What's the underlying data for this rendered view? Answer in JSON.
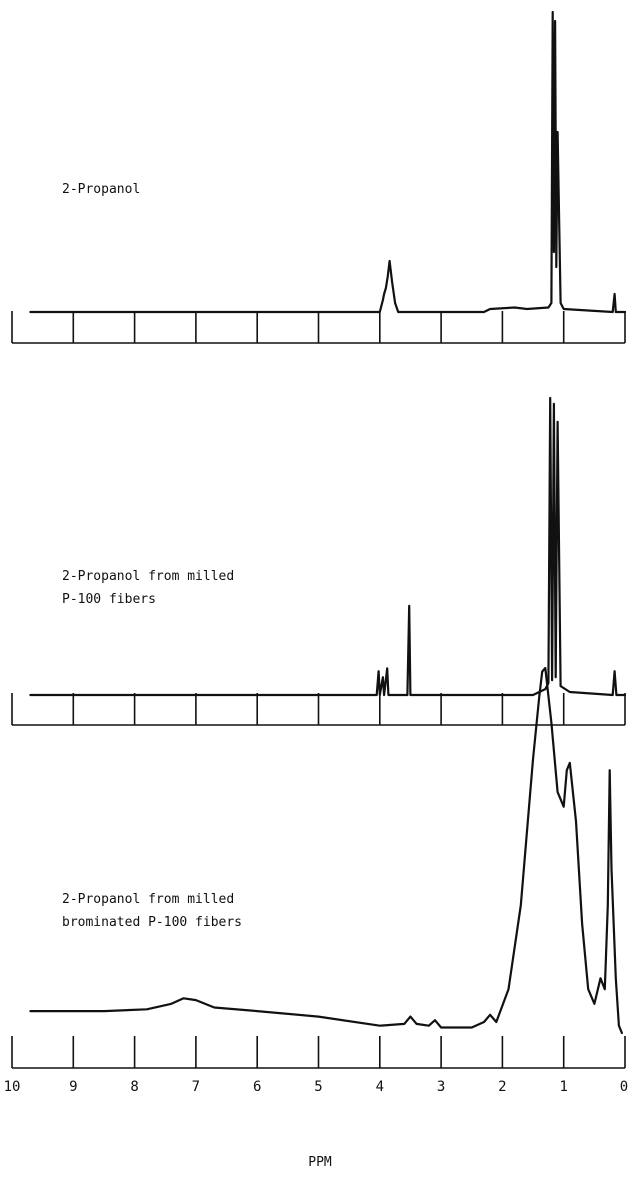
{
  "chart_data": [
    {
      "type": "line",
      "title": "2-Propanol",
      "title_lines": [
        "2-Propanol"
      ],
      "x_reversed": true,
      "xlim": [
        10,
        0
      ],
      "series": [
        {
          "points": [
            [
              9.7,
              0
            ],
            [
              4.0,
              0
            ],
            [
              3.95,
              0.04
            ],
            [
              3.93,
              0.06
            ],
            [
              3.9,
              0.08
            ],
            [
              3.87,
              0.12
            ],
            [
              3.84,
              0.17
            ],
            [
              3.8,
              0.1
            ],
            [
              3.75,
              0.03
            ],
            [
              3.7,
              0
            ],
            [
              2.3,
              0
            ],
            [
              2.2,
              0.01
            ],
            [
              1.8,
              0.015
            ],
            [
              1.6,
              0.01
            ],
            [
              1.25,
              0.015
            ],
            [
              1.2,
              0.03
            ],
            [
              1.18,
              1.0
            ],
            [
              1.16,
              0.2
            ],
            [
              1.14,
              0.97
            ],
            [
              1.12,
              0.15
            ],
            [
              1.1,
              0.6
            ],
            [
              1.05,
              0.03
            ],
            [
              1.0,
              0.01
            ],
            [
              0.2,
              0.0
            ],
            [
              0.17,
              0.06
            ],
            [
              0.15,
              0.0
            ],
            [
              0.0,
              0.0
            ]
          ]
        }
      ]
    },
    {
      "type": "line",
      "title": "2-Propanol from milled P-100 fibers",
      "title_lines": [
        "2-Propanol from milled",
        "P-100 fibers"
      ],
      "x_reversed": true,
      "xlim": [
        10,
        0
      ],
      "series": [
        {
          "points": [
            [
              9.7,
              0
            ],
            [
              4.05,
              0
            ],
            [
              4.02,
              0.08
            ],
            [
              4.0,
              0
            ],
            [
              3.95,
              0.06
            ],
            [
              3.93,
              0
            ],
            [
              3.88,
              0.09
            ],
            [
              3.86,
              0
            ],
            [
              3.55,
              0
            ],
            [
              3.52,
              0.3
            ],
            [
              3.5,
              0
            ],
            [
              1.5,
              0
            ],
            [
              1.3,
              0.02
            ],
            [
              1.25,
              0.04
            ],
            [
              1.22,
              1.0
            ],
            [
              1.19,
              0.05
            ],
            [
              1.16,
              0.98
            ],
            [
              1.13,
              0.06
            ],
            [
              1.1,
              0.92
            ],
            [
              1.05,
              0.03
            ],
            [
              0.9,
              0.01
            ],
            [
              0.2,
              0.0
            ],
            [
              0.17,
              0.08
            ],
            [
              0.14,
              0.0
            ],
            [
              0.0,
              0.0
            ]
          ]
        }
      ]
    },
    {
      "type": "line",
      "title": "2-Propanol from milled brominated P-100 fibers",
      "title_lines": [
        "2-Propanol from milled",
        "brominated P-100 fibers"
      ],
      "x_reversed": true,
      "xlim": [
        10,
        0
      ],
      "series": [
        {
          "points": [
            [
              9.7,
              0.06
            ],
            [
              8.5,
              0.06
            ],
            [
              7.8,
              0.065
            ],
            [
              7.4,
              0.08
            ],
            [
              7.2,
              0.095
            ],
            [
              7.0,
              0.09
            ],
            [
              6.7,
              0.07
            ],
            [
              6.0,
              0.06
            ],
            [
              5.0,
              0.045
            ],
            [
              4.0,
              0.02
            ],
            [
              3.6,
              0.025
            ],
            [
              3.5,
              0.045
            ],
            [
              3.4,
              0.025
            ],
            [
              3.2,
              0.02
            ],
            [
              3.1,
              0.035
            ],
            [
              3.0,
              0.015
            ],
            [
              2.5,
              0.015
            ],
            [
              2.3,
              0.03
            ],
            [
              2.2,
              0.05
            ],
            [
              2.1,
              0.03
            ],
            [
              1.9,
              0.12
            ],
            [
              1.7,
              0.35
            ],
            [
              1.5,
              0.75
            ],
            [
              1.4,
              0.92
            ],
            [
              1.35,
              0.99
            ],
            [
              1.3,
              1.0
            ],
            [
              1.2,
              0.85
            ],
            [
              1.1,
              0.66
            ],
            [
              1.0,
              0.62
            ],
            [
              0.95,
              0.72
            ],
            [
              0.9,
              0.74
            ],
            [
              0.8,
              0.58
            ],
            [
              0.7,
              0.3
            ],
            [
              0.6,
              0.12
            ],
            [
              0.5,
              0.08
            ],
            [
              0.4,
              0.15
            ],
            [
              0.33,
              0.12
            ],
            [
              0.28,
              0.35
            ],
            [
              0.25,
              0.72
            ],
            [
              0.22,
              0.45
            ],
            [
              0.15,
              0.15
            ],
            [
              0.1,
              0.02
            ],
            [
              0.05,
              0.0
            ]
          ]
        }
      ]
    }
  ],
  "axis": {
    "ticks": [
      10,
      9,
      8,
      7,
      6,
      5,
      4,
      3,
      2,
      1,
      0
    ],
    "tick_labels": [
      "10",
      "9",
      "8",
      "7",
      "6",
      "5",
      "4",
      "3",
      "2",
      "1",
      "0"
    ],
    "xlabel": "PPM"
  }
}
